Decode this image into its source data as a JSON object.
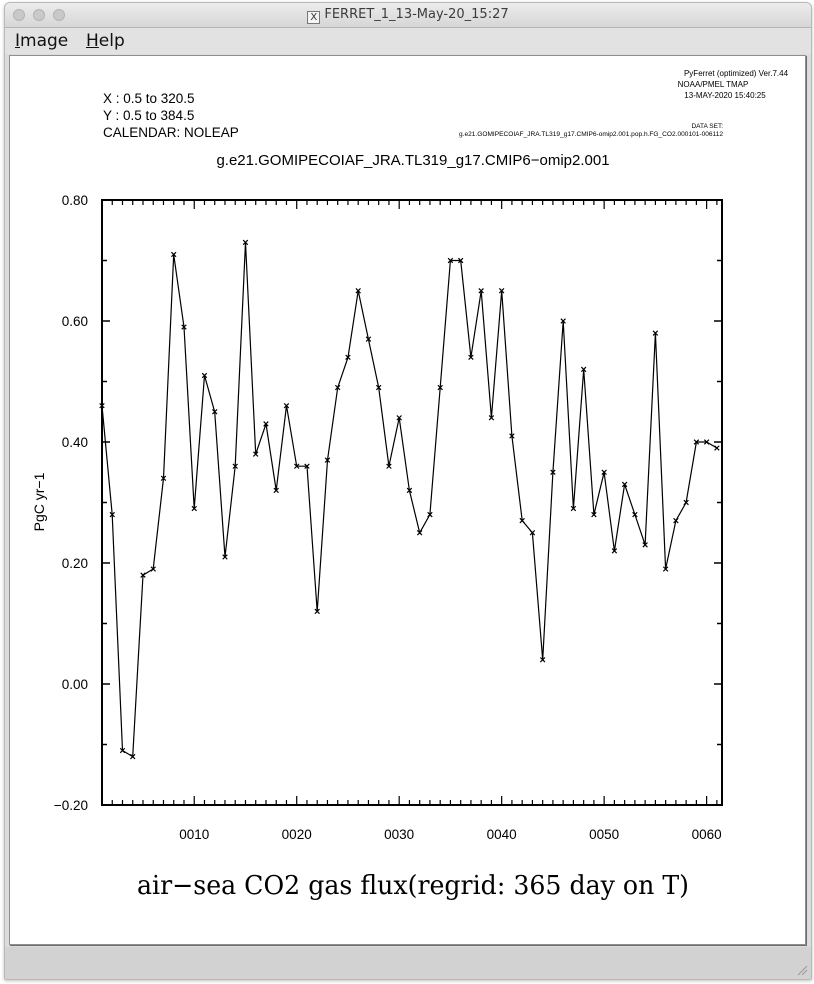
{
  "window": {
    "title": "FERRET_1_13-May-20_15:27",
    "x_glyph": "X"
  },
  "menus": [
    {
      "label": "Image",
      "mnemonic": "I",
      "rest": "mage"
    },
    {
      "label": "Help",
      "mnemonic": "H",
      "rest": "elp"
    }
  ],
  "header": {
    "x_range": "X : 0.5 to 320.5",
    "y_range": "Y : 0.5 to 384.5",
    "calendar": "CALENDAR: NOLEAP",
    "software": "PyFerret (optimized) Ver.7.44",
    "org": "NOAA/PMEL TMAP",
    "timestamp": "13-MAY-2020 15:40:25",
    "dataset_label": "DATA SET:",
    "dataset_file": "g.e21.GOMIPECOIAF_JRA.TL319_g17.CMIP6-omip2.001.pop.h.FG_CO2.000101-006112"
  },
  "chart_data": {
    "type": "line",
    "title": "g.e21.GOMIPECOIAF_JRA.TL319_g17.CMIP6−omip2.001",
    "xlabel": "air−sea CO2 gas flux(regrid: 365 day on T)",
    "ylabel": "PgC yr−1",
    "xlim": [
      1,
      61.5
    ],
    "ylim": [
      -0.2,
      0.8
    ],
    "x_ticks": [
      "0010",
      "0020",
      "0030",
      "0040",
      "0050",
      "0060"
    ],
    "x_tick_values": [
      10,
      20,
      30,
      40,
      50,
      60
    ],
    "y_ticks": [
      "0.80",
      "0.60",
      "0.40",
      "0.20",
      "0.00",
      "−0.20"
    ],
    "y_tick_values": [
      0.8,
      0.6,
      0.4,
      0.2,
      0.0,
      -0.2
    ],
    "marker": "x",
    "grid": false,
    "series": [
      {
        "x": [
          1,
          2,
          3,
          4,
          5,
          6,
          7,
          8,
          9,
          10,
          11,
          12,
          13,
          14,
          15,
          16,
          17,
          18,
          19,
          20,
          21,
          22,
          23,
          24,
          25,
          26,
          27,
          28,
          29,
          30,
          31,
          32,
          33,
          34,
          35,
          36,
          37,
          38,
          39,
          40,
          41,
          42,
          43,
          44,
          45,
          46,
          47,
          48,
          49,
          50,
          51,
          52,
          53,
          54,
          55,
          56,
          57,
          58,
          59,
          60,
          61
        ],
        "values": [
          0.46,
          0.28,
          -0.11,
          -0.12,
          0.18,
          0.19,
          0.34,
          0.71,
          0.59,
          0.29,
          0.51,
          0.45,
          0.21,
          0.36,
          0.73,
          0.38,
          0.43,
          0.32,
          0.46,
          0.36,
          0.36,
          0.12,
          0.37,
          0.49,
          0.54,
          0.65,
          0.57,
          0.49,
          0.36,
          0.44,
          0.32,
          0.25,
          0.28,
          0.49,
          0.7,
          0.7,
          0.54,
          0.65,
          0.44,
          0.65,
          0.41,
          0.27,
          0.25,
          0.04,
          0.35,
          0.6,
          0.29,
          0.52,
          0.28,
          0.35,
          0.22,
          0.33,
          0.28,
          0.23,
          0.58,
          0.19,
          0.27,
          0.3,
          0.4,
          0.4,
          0.39
        ]
      }
    ]
  }
}
